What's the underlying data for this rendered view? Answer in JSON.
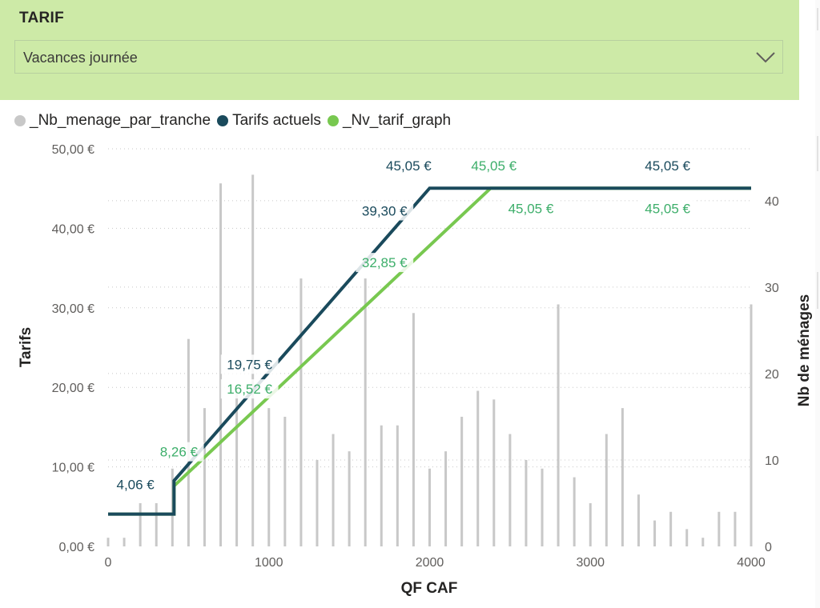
{
  "slicer": {
    "title": "TARIF",
    "selected": "Vacances journée"
  },
  "legend": [
    {
      "label": "_Nb_menage_par_tranche",
      "color": "#c8c8c8"
    },
    {
      "label": "Tarifs actuels",
      "color": "#1a4a5c"
    },
    {
      "label": "_Nv_tarif_graph",
      "color": "#78c850"
    }
  ],
  "chart_data": {
    "type": "bar",
    "xlabel": "QF CAF",
    "ylabel": "Tarifs",
    "y2label": "Nb de ménages",
    "xlim": [
      0,
      4000
    ],
    "ylim": [
      0,
      50
    ],
    "y2lim": [
      0,
      46
    ],
    "x_ticks": [
      "0",
      "1000",
      "2000",
      "3000",
      "4000"
    ],
    "y_ticks": [
      "0,00 €",
      "10,00 €",
      "20,00 €",
      "30,00 €",
      "40,00 €",
      "50,00 €"
    ],
    "y2_ticks": [
      "0",
      "10",
      "20",
      "30",
      "40"
    ],
    "grid": true,
    "series": [
      {
        "name": "_Nb_menage_par_tranche",
        "type": "bar",
        "axis": "right",
        "x": [
          0,
          100,
          200,
          300,
          400,
          500,
          600,
          700,
          800,
          900,
          1000,
          1100,
          1200,
          1300,
          1400,
          1500,
          1600,
          1700,
          1800,
          1900,
          2000,
          2100,
          2200,
          2300,
          2400,
          2500,
          2600,
          2700,
          2800,
          2900,
          3000,
          3100,
          3200,
          3300,
          3400,
          3500,
          3600,
          3700,
          3800,
          3900,
          4000
        ],
        "values": [
          1,
          1,
          5,
          5,
          9,
          24,
          16,
          42,
          18,
          43,
          16,
          15,
          31,
          10,
          13,
          11,
          31,
          14,
          14,
          27,
          9,
          11,
          15,
          18,
          17,
          13,
          10,
          9,
          28,
          8,
          5,
          13,
          16,
          6,
          3,
          4,
          2,
          1,
          4,
          4,
          28
        ]
      },
      {
        "name": "Tarifs actuels",
        "type": "line",
        "axis": "left",
        "x": [
          0,
          410,
          410,
          2000,
          2400,
          4000
        ],
        "y": [
          4.06,
          4.06,
          8.26,
          45.05,
          45.05,
          45.05
        ]
      },
      {
        "name": "_Nv_tarif_graph",
        "type": "line",
        "axis": "left",
        "x": [
          0,
          410,
          410,
          2380,
          4000
        ],
        "y": [
          4.06,
          4.06,
          7.6,
          45.05,
          45.05
        ]
      }
    ],
    "labels": [
      {
        "text": "4,06 €",
        "x": 170,
        "y": 7.2,
        "series": "Tarifs actuels",
        "align": "middle"
      },
      {
        "text": "8,26 €",
        "x": 440,
        "y": 11.3,
        "series": "_Nv_tarif_graph",
        "align": "middle"
      },
      {
        "text": "19,75 €",
        "x": 880,
        "y": 22.3,
        "series": "Tarifs actuels",
        "align": "middle"
      },
      {
        "text": "16,52 €",
        "x": 880,
        "y": 19.2,
        "series": "_Nv_tarif_graph",
        "align": "middle"
      },
      {
        "text": "39,30 €",
        "x": 1720,
        "y": 41.6,
        "series": "Tarifs actuels",
        "align": "middle"
      },
      {
        "text": "32,85 €",
        "x": 1720,
        "y": 35.1,
        "series": "_Nv_tarif_graph",
        "align": "middle"
      },
      {
        "text": "45,05 €",
        "x": 1870,
        "y": 47.3,
        "series": "Tarifs actuels",
        "align": "middle"
      },
      {
        "text": "45,05 €",
        "x": 2400,
        "y": 47.3,
        "series": "_Nv_tarif_graph",
        "align": "middle"
      },
      {
        "text": "45,05 €",
        "x": 2630,
        "y": 41.9,
        "series": "_Nv_tarif_graph",
        "align": "middle"
      },
      {
        "text": "45,05 €",
        "x": 3480,
        "y": 47.3,
        "series": "Tarifs actuels",
        "align": "middle"
      },
      {
        "text": "45,05 €",
        "x": 3480,
        "y": 41.9,
        "series": "_Nv_tarif_graph",
        "align": "middle"
      }
    ]
  }
}
